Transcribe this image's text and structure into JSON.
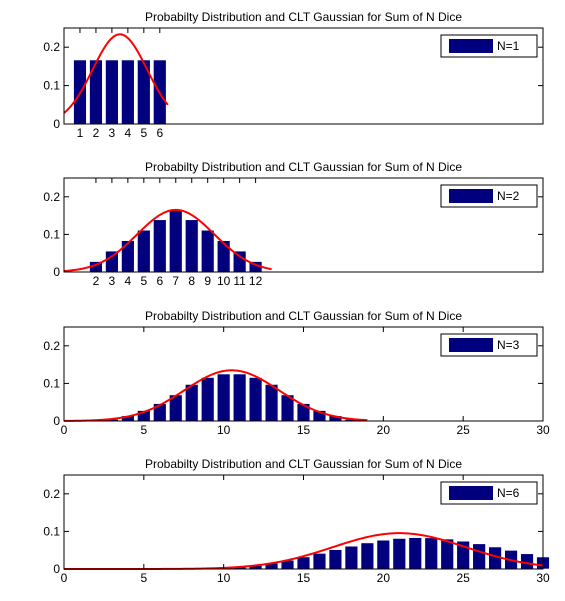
{
  "colors": {
    "bar": "#00007f",
    "curve": "#ff0000",
    "axis": "#000000",
    "background": "#ffffff"
  },
  "chart_data": [
    {
      "type": "bar",
      "title": "Probabilty Distribution and CLT Gaussian for Sum of N Dice",
      "legend": "N=1",
      "legend_position": "top-right",
      "xlim": [
        0,
        30
      ],
      "ylim": [
        0,
        0.25
      ],
      "yticks": [
        "0",
        "0.1",
        "0.2"
      ],
      "yticks_values": [
        0,
        0.1,
        0.2
      ],
      "xtick_labels": [
        "1",
        "2",
        "3",
        "4",
        "5",
        "6"
      ],
      "xtick_values": [
        1,
        2,
        3,
        4,
        5,
        6
      ],
      "x": [
        1,
        2,
        3,
        4,
        5,
        6
      ],
      "values": [
        0.1667,
        0.1667,
        0.1667,
        0.1667,
        0.1667,
        0.1667
      ],
      "gaussian": {
        "mean": 3.5,
        "std": 1.708,
        "xrange": [
          0,
          6.5
        ]
      }
    },
    {
      "type": "bar",
      "title": "Probabilty Distribution and CLT Gaussian for Sum of N Dice",
      "legend": "N=2",
      "legend_position": "top-right",
      "xlim": [
        0,
        30
      ],
      "ylim": [
        0,
        0.25
      ],
      "yticks": [
        "0",
        "0.1",
        "0.2"
      ],
      "yticks_values": [
        0,
        0.1,
        0.2
      ],
      "xtick_labels": [
        "2",
        "3",
        "4",
        "5",
        "6",
        "7",
        "8",
        "9",
        "10",
        "11",
        "12"
      ],
      "xtick_values": [
        2,
        3,
        4,
        5,
        6,
        7,
        8,
        9,
        10,
        11,
        12
      ],
      "x": [
        2,
        3,
        4,
        5,
        6,
        7,
        8,
        9,
        10,
        11,
        12
      ],
      "values": [
        0.0278,
        0.0556,
        0.0833,
        0.1111,
        0.1389,
        0.1667,
        0.1389,
        0.1111,
        0.0833,
        0.0556,
        0.0278
      ],
      "gaussian": {
        "mean": 7,
        "std": 2.415,
        "xrange": [
          0,
          13
        ]
      }
    },
    {
      "type": "bar",
      "title": "Probabilty Distribution and CLT Gaussian for Sum of N Dice",
      "legend": "N=3",
      "legend_position": "top-right",
      "xlim": [
        0,
        30
      ],
      "ylim": [
        0,
        0.25
      ],
      "yticks": [
        "0",
        "0.1",
        "0.2"
      ],
      "yticks_values": [
        0,
        0.1,
        0.2
      ],
      "xtick_labels": [
        "0",
        "5",
        "10",
        "15",
        "20",
        "25",
        "30"
      ],
      "xtick_values": [
        0,
        5,
        10,
        15,
        20,
        25,
        30
      ],
      "x": [
        3,
        4,
        5,
        6,
        7,
        8,
        9,
        10,
        11,
        12,
        13,
        14,
        15,
        16,
        17,
        18
      ],
      "values": [
        0.0046,
        0.0139,
        0.0278,
        0.0463,
        0.0694,
        0.0972,
        0.1157,
        0.125,
        0.125,
        0.1157,
        0.0972,
        0.0694,
        0.0463,
        0.0278,
        0.0139,
        0.0046
      ],
      "gaussian": {
        "mean": 10.5,
        "std": 2.958,
        "xrange": [
          0,
          19
        ]
      }
    },
    {
      "type": "bar",
      "title": "Probabilty Distribution and CLT Gaussian for Sum of N Dice",
      "legend": "N=6",
      "legend_position": "top-right",
      "xlim": [
        0,
        30
      ],
      "ylim": [
        0,
        0.25
      ],
      "yticks": [
        "0",
        "0.1",
        "0.2"
      ],
      "yticks_values": [
        0,
        0.1,
        0.2
      ],
      "xtick_labels": [
        "0",
        "5",
        "10",
        "15",
        "20",
        "25",
        "30"
      ],
      "xtick_values": [
        0,
        5,
        10,
        15,
        20,
        25,
        30
      ],
      "x": [
        6,
        7,
        8,
        9,
        10,
        11,
        12,
        13,
        14,
        15,
        16,
        17,
        18,
        19,
        20,
        21,
        22,
        23,
        24,
        25,
        26,
        27,
        28,
        29,
        30
      ],
      "values": [
        0.0,
        0.0001,
        0.0005,
        0.0012,
        0.0027,
        0.0054,
        0.0097,
        0.0157,
        0.0233,
        0.0321,
        0.0416,
        0.0514,
        0.0607,
        0.0694,
        0.0766,
        0.0812,
        0.0835,
        0.0829,
        0.0797,
        0.074,
        0.067,
        0.0586,
        0.0496,
        0.0405,
        0.032
      ],
      "gaussian": {
        "mean": 21,
        "std": 4.183,
        "xrange": [
          0,
          30
        ]
      }
    }
  ]
}
